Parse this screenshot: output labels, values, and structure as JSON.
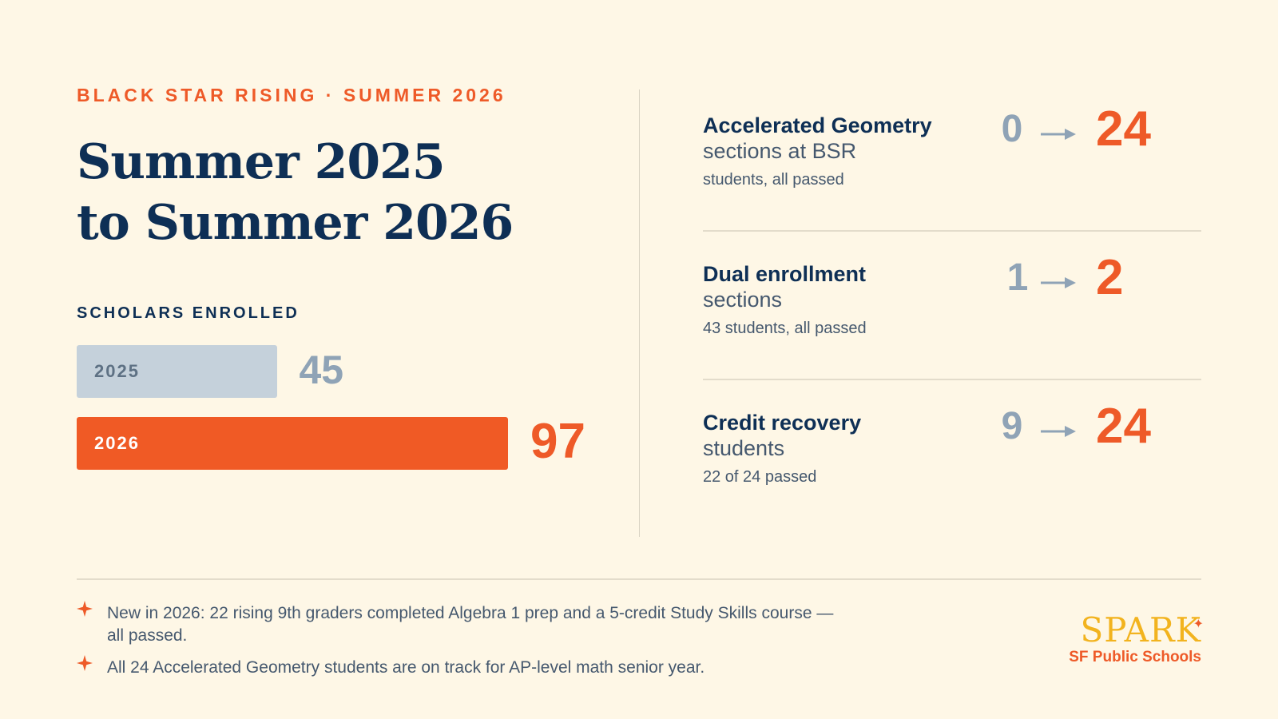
{
  "header": {
    "eyebrow": "BLACK STAR RISING · SUMMER 2026",
    "title_line1": "Summer 2025",
    "title_line2": "to Summer 2026"
  },
  "enrollment": {
    "label": "SCHOLARS ENROLLED"
  },
  "chart_data": {
    "type": "bar",
    "orientation": "horizontal",
    "title": "SCHOLARS ENROLLED",
    "categories": [
      "2025",
      "2026"
    ],
    "values": [
      45,
      97
    ],
    "colors": [
      "#C5D1DB",
      "#F05A25"
    ],
    "value_labels": [
      "45",
      "97"
    ],
    "grid": false
  },
  "metrics": [
    {
      "title": "Accelerated Geometry",
      "subtitle": "sections at BSR",
      "note": "students, all passed",
      "from": "0",
      "to": "24"
    },
    {
      "title": "Dual enrollment",
      "subtitle": "sections",
      "note": "43 students, all passed",
      "from": "1",
      "to": "2"
    },
    {
      "title": "Credit recovery",
      "subtitle": "students",
      "note": "22 of 24 passed",
      "from": "9",
      "to": "24"
    }
  ],
  "notes": [
    {
      "icon": "star-icon",
      "line1": "New in 2026: 22 rising 9th graders completed Algebra 1 prep and a 5-credit Study Skills course —",
      "line2": "all passed."
    },
    {
      "icon": "star-icon",
      "line1": "All 24 Accelerated Geometry students are on track for AP-level math senior year."
    }
  ],
  "logo": {
    "word": "SPARK",
    "sub": "SF Public Schools"
  },
  "colors": {
    "background": "#FEF7E6",
    "navy": "#0E2F55",
    "orange": "#EE5A28",
    "gray": "#8FA3B6",
    "bar_2025": "#C5D1DB",
    "bar_2026": "#F05A25",
    "logo_gold": "#F2B31E"
  }
}
